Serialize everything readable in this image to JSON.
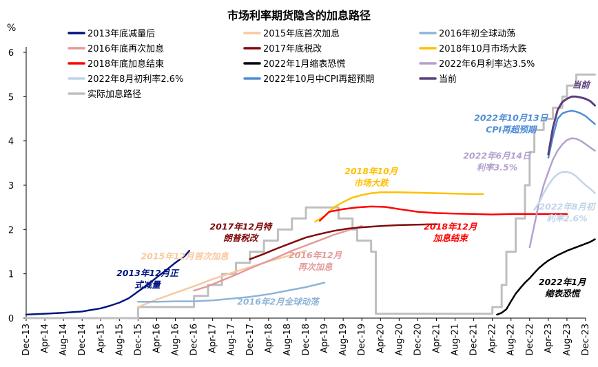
{
  "chart_data": {
    "type": "line",
    "title": "市场利率期货隐含的加息路径",
    "ylabel": "%",
    "xlabel": "",
    "ylim": [
      0,
      6
    ],
    "yticks": [
      "0",
      "1",
      "2",
      "3",
      "4",
      "5",
      "6"
    ],
    "x_months": [
      0,
      4,
      8,
      12,
      16,
      20,
      24,
      28,
      32,
      36,
      40,
      44,
      48,
      52,
      56,
      60,
      64,
      68,
      72,
      76,
      80,
      84,
      88,
      92,
      96,
      100,
      104,
      108,
      112,
      116,
      120
    ],
    "x_tick_labels": [
      "Dec-13",
      "Apr-14",
      "Aug-14",
      "Dec-14",
      "Apr-15",
      "Aug-15",
      "Dec-15",
      "Apr-16",
      "Aug-16",
      "Dec-16",
      "Apr-17",
      "Aug-17",
      "Dec-17",
      "Apr-18",
      "Aug-18",
      "Dec-18",
      "Apr-19",
      "Aug-19",
      "Dec-19",
      "Apr-20",
      "Aug-20",
      "Dec-20",
      "Apr-21",
      "Aug-21",
      "Dec-21",
      "Apr-22",
      "Aug-22",
      "Dec-22",
      "Apr-23",
      "Aug-23",
      "Dec-23"
    ],
    "x_note": "x values are months since Dec-2013",
    "series": [
      {
        "name": "2013年底减量后",
        "color": "#00157F",
        "width": 2.5,
        "points": [
          [
            0,
            0.08
          ],
          [
            4,
            0.1
          ],
          [
            8,
            0.12
          ],
          [
            12,
            0.15
          ],
          [
            16,
            0.22
          ],
          [
            18,
            0.28
          ],
          [
            20,
            0.35
          ],
          [
            22,
            0.45
          ],
          [
            24,
            0.6
          ],
          [
            26,
            0.75
          ],
          [
            28,
            0.92
          ],
          [
            30,
            1.08
          ],
          [
            32,
            1.25
          ],
          [
            34,
            1.4
          ],
          [
            35,
            1.52
          ]
        ]
      },
      {
        "name": "2015年底首次加息",
        "color": "#F8C99E",
        "width": 2.5,
        "points": [
          [
            24,
            0.25
          ],
          [
            28,
            0.42
          ],
          [
            32,
            0.57
          ],
          [
            36,
            0.72
          ],
          [
            40,
            0.88
          ],
          [
            44,
            1.02
          ],
          [
            48,
            1.15
          ],
          [
            52,
            1.28
          ],
          [
            56,
            1.4
          ],
          [
            60,
            1.52
          ]
        ]
      },
      {
        "name": "2016年初全球动荡",
        "color": "#8EB4D8",
        "width": 2.5,
        "points": [
          [
            24,
            0.37
          ],
          [
            28,
            0.37
          ],
          [
            32,
            0.38
          ],
          [
            36,
            0.38
          ],
          [
            40,
            0.4
          ],
          [
            44,
            0.44
          ],
          [
            48,
            0.48
          ],
          [
            52,
            0.54
          ],
          [
            56,
            0.62
          ],
          [
            60,
            0.7
          ],
          [
            64,
            0.8
          ]
        ]
      },
      {
        "name": "2016年底再次加息",
        "color": "#E59A9A",
        "width": 2.5,
        "points": [
          [
            36,
            0.62
          ],
          [
            39,
            0.72
          ],
          [
            42,
            0.85
          ],
          [
            45,
            0.98
          ],
          [
            48,
            1.12
          ],
          [
            51,
            1.25
          ],
          [
            54,
            1.38
          ],
          [
            57,
            1.52
          ],
          [
            60,
            1.64
          ],
          [
            63,
            1.76
          ],
          [
            66,
            1.88
          ],
          [
            69,
            1.98
          ],
          [
            72,
            2.08
          ]
        ]
      },
      {
        "name": "2017年底税改",
        "color": "#7F0A0A",
        "width": 2.5,
        "points": [
          [
            48,
            1.33
          ],
          [
            51,
            1.45
          ],
          [
            54,
            1.58
          ],
          [
            57,
            1.7
          ],
          [
            60,
            1.82
          ],
          [
            63,
            1.9
          ],
          [
            66,
            1.97
          ],
          [
            69,
            2.02
          ],
          [
            72,
            2.05
          ],
          [
            76,
            2.08
          ],
          [
            80,
            2.1
          ],
          [
            84,
            2.11
          ],
          [
            88,
            2.12
          ]
        ]
      },
      {
        "name": "2018年10月市场大跌",
        "color": "#FFC000",
        "width": 2.5,
        "points": [
          [
            62,
            2.18
          ],
          [
            64,
            2.3
          ],
          [
            66,
            2.5
          ],
          [
            68,
            2.62
          ],
          [
            70,
            2.72
          ],
          [
            72,
            2.78
          ],
          [
            74,
            2.82
          ],
          [
            76,
            2.84
          ],
          [
            80,
            2.84
          ],
          [
            84,
            2.83
          ],
          [
            88,
            2.82
          ],
          [
            92,
            2.81
          ],
          [
            96,
            2.8
          ],
          [
            98,
            2.8
          ]
        ]
      },
      {
        "name": "2018年底加息结束",
        "color": "#FF0000",
        "width": 2.5,
        "points": [
          [
            63,
            2.2
          ],
          [
            65,
            2.4
          ],
          [
            68,
            2.46
          ],
          [
            71,
            2.5
          ],
          [
            74,
            2.52
          ],
          [
            77,
            2.51
          ],
          [
            80,
            2.46
          ],
          [
            84,
            2.4
          ],
          [
            88,
            2.37
          ],
          [
            92,
            2.36
          ],
          [
            96,
            2.35
          ],
          [
            100,
            2.34
          ],
          [
            104,
            2.35
          ],
          [
            116,
            2.35
          ]
        ]
      },
      {
        "name": "2022年1月缩表恐慌",
        "color": "#000000",
        "width": 2.5,
        "points": [
          [
            101,
            0.08
          ],
          [
            102,
            0.12
          ],
          [
            103,
            0.2
          ],
          [
            104,
            0.38
          ],
          [
            105,
            0.55
          ],
          [
            106,
            0.68
          ],
          [
            107,
            0.8
          ],
          [
            108,
            0.9
          ],
          [
            109,
            1.02
          ],
          [
            110,
            1.13
          ],
          [
            111,
            1.22
          ],
          [
            112,
            1.3
          ],
          [
            114,
            1.42
          ],
          [
            116,
            1.52
          ],
          [
            118,
            1.6
          ],
          [
            120,
            1.68
          ],
          [
            121,
            1.72
          ],
          [
            122,
            1.78
          ]
        ]
      },
      {
        "name": "2022年6月利率达3.5%",
        "color": "#B4A0CF",
        "width": 2.5,
        "points": [
          [
            108,
            1.6
          ],
          [
            109,
            2.1
          ],
          [
            110,
            2.6
          ],
          [
            111,
            3.0
          ],
          [
            112,
            3.3
          ],
          [
            113,
            3.58
          ],
          [
            114,
            3.78
          ],
          [
            115,
            3.92
          ],
          [
            116,
            4.02
          ],
          [
            117,
            4.06
          ],
          [
            118,
            4.05
          ],
          [
            119,
            4.0
          ],
          [
            120,
            3.93
          ],
          [
            121,
            3.85
          ],
          [
            122,
            3.78
          ]
        ]
      },
      {
        "name": "2022年8月初利率2.6%",
        "color": "#C0D4EA",
        "width": 2.5,
        "points": [
          [
            109,
            2.45
          ],
          [
            110,
            2.6
          ],
          [
            111,
            2.82
          ],
          [
            112,
            3.0
          ],
          [
            113,
            3.15
          ],
          [
            114,
            3.25
          ],
          [
            115,
            3.3
          ],
          [
            116,
            3.3
          ],
          [
            117,
            3.27
          ],
          [
            118,
            3.2
          ],
          [
            119,
            3.1
          ],
          [
            120,
            3.0
          ],
          [
            121,
            2.92
          ],
          [
            122,
            2.82
          ]
        ]
      },
      {
        "name": "2022年10月中CPI再超预期",
        "color": "#4E8DD6",
        "width": 2.5,
        "points": [
          [
            112,
            3.62
          ],
          [
            113,
            4.1
          ],
          [
            114,
            4.5
          ],
          [
            115,
            4.62
          ],
          [
            116,
            4.66
          ],
          [
            117,
            4.68
          ],
          [
            118,
            4.66
          ],
          [
            119,
            4.62
          ],
          [
            120,
            4.56
          ],
          [
            121,
            4.47
          ],
          [
            122,
            4.38
          ]
        ]
      },
      {
        "name": "当前",
        "color": "#5C3D7A",
        "width": 3,
        "points": [
          [
            112,
            3.7
          ],
          [
            113,
            4.3
          ],
          [
            114,
            4.7
          ],
          [
            115,
            4.88
          ],
          [
            116,
            4.95
          ],
          [
            117,
            5.0
          ],
          [
            118,
            5.0
          ],
          [
            119,
            4.98
          ],
          [
            120,
            4.95
          ],
          [
            121,
            4.9
          ],
          [
            122,
            4.8
          ]
        ]
      },
      {
        "name": "实际加息路径",
        "color": "#BFBFBF",
        "width": 3,
        "step": true,
        "points": [
          [
            0,
            0.0
          ],
          [
            24,
            0.0
          ],
          [
            24,
            0.25
          ],
          [
            36,
            0.25
          ],
          [
            36,
            0.5
          ],
          [
            39,
            0.5
          ],
          [
            39,
            0.75
          ],
          [
            42,
            0.75
          ],
          [
            42,
            1.0
          ],
          [
            45,
            1.0
          ],
          [
            45,
            1.25
          ],
          [
            48,
            1.25
          ],
          [
            48,
            1.5
          ],
          [
            51,
            1.5
          ],
          [
            51,
            1.75
          ],
          [
            54,
            1.75
          ],
          [
            54,
            2.0
          ],
          [
            57,
            2.0
          ],
          [
            57,
            2.25
          ],
          [
            60,
            2.25
          ],
          [
            60,
            2.5
          ],
          [
            67,
            2.5
          ],
          [
            67,
            2.25
          ],
          [
            70,
            2.25
          ],
          [
            70,
            2.0
          ],
          [
            71,
            2.0
          ],
          [
            71,
            1.75
          ],
          [
            74,
            1.75
          ],
          [
            74,
            1.5
          ],
          [
            75,
            1.5
          ],
          [
            75,
            0.1
          ],
          [
            100,
            0.1
          ],
          [
            100,
            0.25
          ],
          [
            102,
            0.25
          ],
          [
            102,
            0.75
          ],
          [
            103,
            0.75
          ],
          [
            103,
            1.5
          ],
          [
            105,
            1.5
          ],
          [
            105,
            2.25
          ],
          [
            107,
            2.25
          ],
          [
            107,
            3.0
          ],
          [
            108,
            3.0
          ],
          [
            108,
            3.75
          ],
          [
            109,
            3.75
          ],
          [
            109,
            4.25
          ],
          [
            111,
            4.25
          ],
          [
            111,
            4.5
          ],
          [
            113,
            4.5
          ],
          [
            113,
            4.75
          ],
          [
            115,
            4.75
          ],
          [
            115,
            5.0
          ],
          [
            116,
            5.0
          ],
          [
            116,
            5.25
          ],
          [
            118,
            5.25
          ],
          [
            118,
            5.5
          ],
          [
            122,
            5.5
          ]
        ]
      }
    ],
    "legend": [
      {
        "label": "2013年底减量后",
        "color": "#00157F"
      },
      {
        "label": "2015年底首次加息",
        "color": "#F8C99E"
      },
      {
        "label": "2016年初全球动荡",
        "color": "#8EB4D8"
      },
      {
        "label": "2016年底再次加息",
        "color": "#E59A9A"
      },
      {
        "label": "2017年底税改",
        "color": "#7F0A0A"
      },
      {
        "label": "2018年10月市场大跌",
        "color": "#FFC000"
      },
      {
        "label": "2018年底加息结束",
        "color": "#FF0000"
      },
      {
        "label": "2022年1月缩表恐慌",
        "color": "#000000"
      },
      {
        "label": "2022年6月利率达3.5%",
        "color": "#B4A0CF"
      },
      {
        "label": "2022年8月初利率2.6%",
        "color": "#C0D4EA"
      },
      {
        "label": "2022年10月中CPI再超预期",
        "color": "#4E8DD6"
      },
      {
        "label": "当前",
        "color": "#5C3D7A"
      },
      {
        "label": "实际加息路径",
        "color": "#BFBFBF"
      }
    ],
    "annotations": [
      {
        "lines": [
          "2013年12月正",
          "式减量"
        ],
        "color": "#00157F",
        "x": 26,
        "y": 0.95
      },
      {
        "lines": [
          "2015年12月首次加息"
        ],
        "color": "#F8C99E",
        "x": 34,
        "y": 1.33
      },
      {
        "lines": [
          "2016年2月全球动荡"
        ],
        "color": "#8EB4D8",
        "x": 54,
        "y": 0.3
      },
      {
        "lines": [
          "2016年12月",
          "再次加息"
        ],
        "color": "#E59A9A",
        "x": 62,
        "y": 1.35
      },
      {
        "lines": [
          "2017年12月特",
          "朗普税改"
        ],
        "color": "#7F0A0A",
        "x": 46,
        "y": 2.0
      },
      {
        "lines": [
          "2018年10月",
          "市场大跌"
        ],
        "color": "#FFC000",
        "x": 74,
        "y": 3.25
      },
      {
        "lines": [
          "2018年12月",
          "加息结束"
        ],
        "color": "#FF0000",
        "x": 91,
        "y": 2.0
      },
      {
        "lines": [
          "2022年1月",
          "缩表恐慌"
        ],
        "color": "#000000",
        "x": 115,
        "y": 0.75
      },
      {
        "lines": [
          "2022年6月14日",
          "利率3.5%"
        ],
        "color": "#B4A0CF",
        "x": 101,
        "y": 3.6
      },
      {
        "lines": [
          "2022年8月初",
          "利率2.6%"
        ],
        "color": "#C0D4EA",
        "x": 116,
        "y": 2.45
      },
      {
        "lines": [
          "2022年10月13日",
          "CPI再超预期"
        ],
        "color": "#4E8DD6",
        "x": 104,
        "y": 4.45
      },
      {
        "lines": [
          "当前"
        ],
        "color": "#5C3D7A",
        "x": 119,
        "y": 5.2
      }
    ]
  }
}
